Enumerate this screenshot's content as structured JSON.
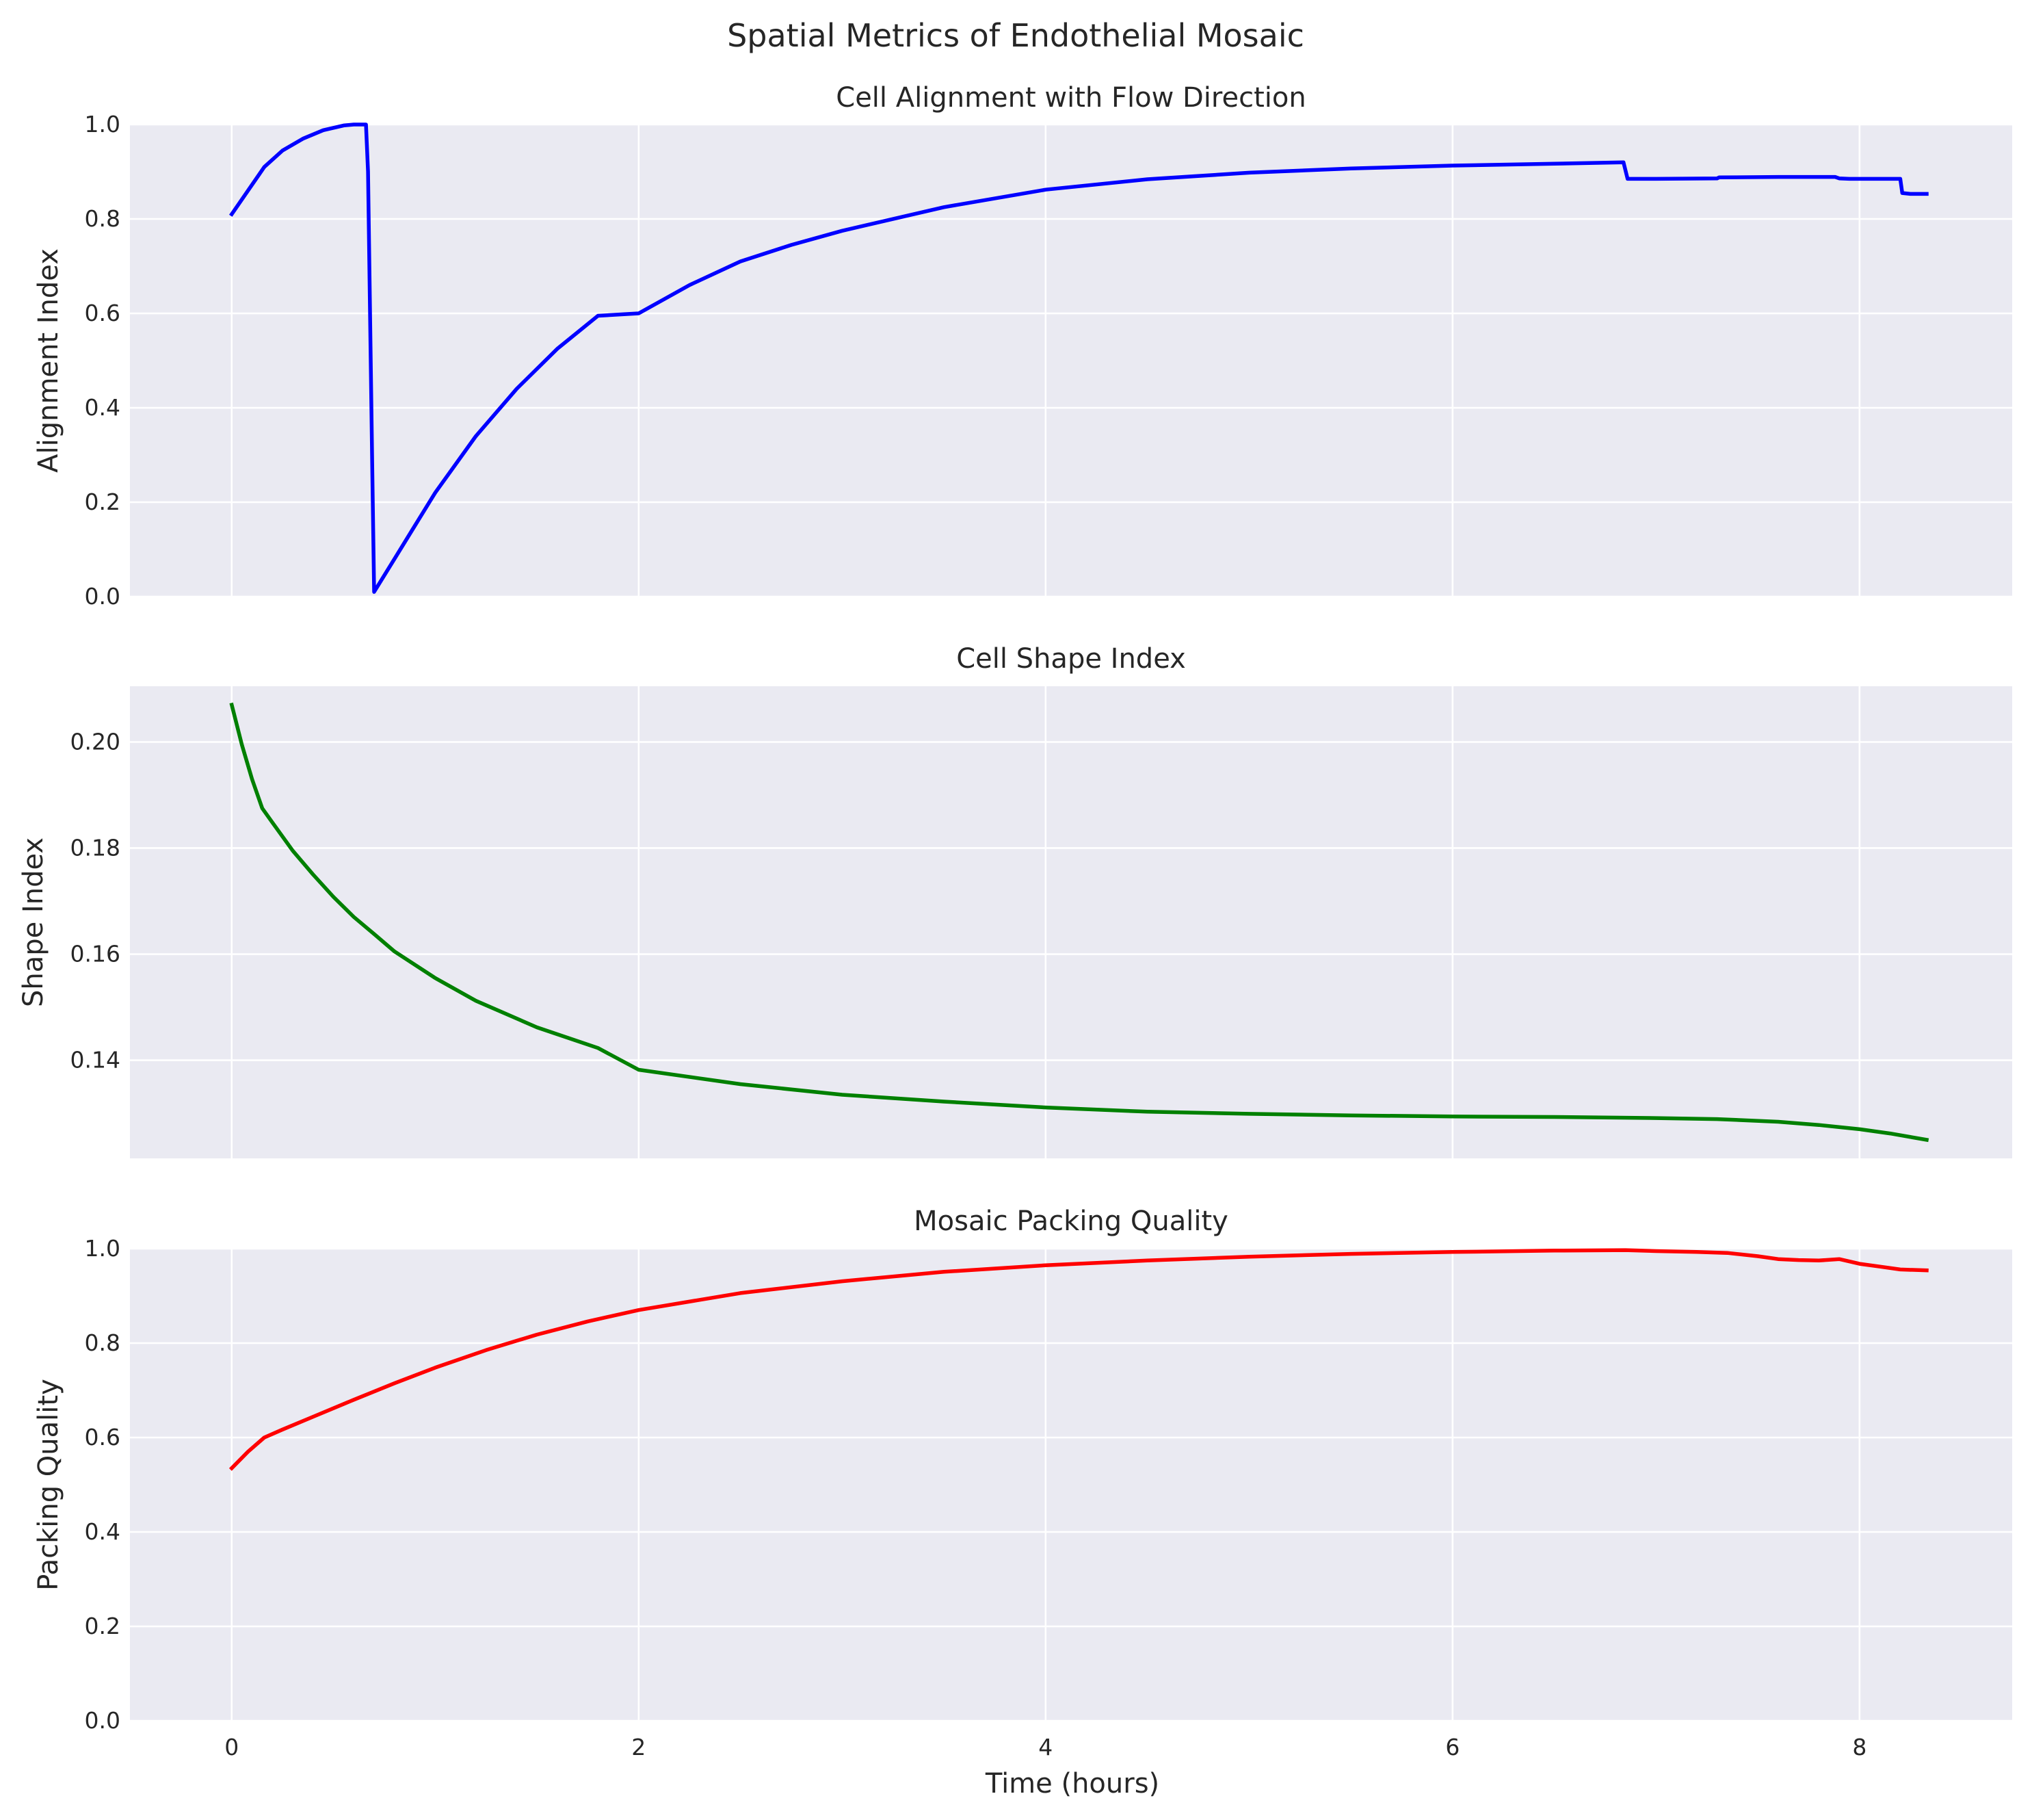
{
  "figure": {
    "suptitle": "Spatial Metrics of Endothelial Mosaic",
    "xlabel": "Time (hours)",
    "background": "#ffffff",
    "plot_background": "#eaeaf2",
    "grid_color": "#ffffff"
  },
  "chart_data": [
    {
      "type": "line",
      "title": "Cell Alignment with Flow Direction",
      "xlabel": "",
      "ylabel": "Alignment Index",
      "xlim": [
        -0.5,
        8.75
      ],
      "ylim": [
        0.0,
        1.0
      ],
      "xticks": [
        0,
        2,
        4,
        6,
        8
      ],
      "yticks": [
        0.0,
        0.2,
        0.4,
        0.6,
        0.8,
        1.0
      ],
      "ytick_labels": [
        "0.0",
        "0.2",
        "0.4",
        "0.6",
        "0.8",
        "1.0"
      ],
      "show_x_tick_labels": false,
      "grid": true,
      "series": [
        {
          "color": "#0000ff",
          "x": [
            0,
            0.08,
            0.16,
            0.25,
            0.35,
            0.45,
            0.55,
            0.6,
            0.64,
            0.66,
            0.67,
            0.69,
            0.7,
            0.8,
            0.9,
            1.0,
            1.2,
            1.4,
            1.6,
            1.8,
            2.0,
            2.25,
            2.5,
            2.75,
            3.0,
            3.5,
            4.0,
            4.5,
            5.0,
            5.5,
            6.0,
            6.5,
            6.84,
            6.86,
            7.0,
            7.3,
            7.31,
            7.6,
            7.88,
            7.9,
            7.95,
            8.0,
            8.2,
            8.21,
            8.25,
            8.33
          ],
          "y": [
            0.81,
            0.86,
            0.91,
            0.945,
            0.97,
            0.988,
            0.998,
            1.0,
            1.0,
            1.0,
            0.9,
            0.3,
            0.01,
            0.08,
            0.15,
            0.22,
            0.34,
            0.44,
            0.525,
            0.595,
            0.6,
            0.66,
            0.71,
            0.745,
            0.775,
            0.825,
            0.862,
            0.884,
            0.898,
            0.907,
            0.913,
            0.917,
            0.92,
            0.885,
            0.885,
            0.886,
            0.888,
            0.889,
            0.889,
            0.886,
            0.885,
            0.885,
            0.885,
            0.855,
            0.853,
            0.853
          ]
        }
      ]
    },
    {
      "type": "line",
      "title": "Cell Shape Index",
      "xlabel": "",
      "ylabel": "Shape Index",
      "xlim": [
        -0.5,
        8.75
      ],
      "ylim": [
        0.1215,
        0.2105
      ],
      "xticks": [
        0,
        2,
        4,
        6,
        8
      ],
      "yticks": [
        0.14,
        0.16,
        0.18,
        0.2
      ],
      "ytick_labels": [
        "0.14",
        "0.16",
        "0.18",
        "0.20"
      ],
      "show_x_tick_labels": false,
      "grid": true,
      "series": [
        {
          "color": "#008000",
          "x": [
            0,
            0.05,
            0.1,
            0.15,
            0.2,
            0.3,
            0.4,
            0.5,
            0.6,
            0.7,
            0.8,
            1.0,
            1.2,
            1.5,
            1.8,
            2.0,
            2.5,
            3.0,
            3.5,
            4.0,
            4.5,
            5.0,
            5.5,
            6.0,
            6.5,
            7.0,
            7.3,
            7.6,
            7.8,
            8.0,
            8.15,
            8.33
          ],
          "y": [
            0.207,
            0.1995,
            0.193,
            0.1875,
            0.1848,
            0.1795,
            0.175,
            0.1708,
            0.167,
            0.1638,
            0.1605,
            0.1555,
            0.1512,
            0.1462,
            0.1423,
            0.1382,
            0.1355,
            0.1335,
            0.1322,
            0.1311,
            0.1303,
            0.1299,
            0.1296,
            0.1294,
            0.1293,
            0.1291,
            0.1289,
            0.1284,
            0.1278,
            0.127,
            0.1262,
            0.125
          ]
        }
      ]
    },
    {
      "type": "line",
      "title": "Mosaic Packing Quality",
      "xlabel": "Time (hours)",
      "ylabel": "Packing Quality",
      "xlim": [
        -0.5,
        8.75
      ],
      "ylim": [
        0.0,
        1.0
      ],
      "xticks": [
        0,
        2,
        4,
        6,
        8
      ],
      "xtick_labels": [
        "0",
        "2",
        "4",
        "6",
        "8"
      ],
      "yticks": [
        0.0,
        0.2,
        0.4,
        0.6,
        0.8,
        1.0
      ],
      "ytick_labels": [
        "0.0",
        "0.2",
        "0.4",
        "0.6",
        "0.8",
        "1.0"
      ],
      "show_x_tick_labels": true,
      "grid": true,
      "series": [
        {
          "color": "#ff0000",
          "x": [
            0,
            0.08,
            0.16,
            0.25,
            0.4,
            0.6,
            0.8,
            1.0,
            1.25,
            1.5,
            1.75,
            2.0,
            2.5,
            3.0,
            3.5,
            4.0,
            4.5,
            5.0,
            5.5,
            6.0,
            6.5,
            6.85,
            7.0,
            7.2,
            7.35,
            7.5,
            7.6,
            7.7,
            7.8,
            7.9,
            8.0,
            8.1,
            8.2,
            8.33
          ],
          "y": [
            0.535,
            0.57,
            0.6,
            0.617,
            0.644,
            0.68,
            0.715,
            0.748,
            0.785,
            0.818,
            0.846,
            0.87,
            0.906,
            0.931,
            0.951,
            0.965,
            0.975,
            0.983,
            0.989,
            0.993,
            0.996,
            0.997,
            0.995,
            0.993,
            0.991,
            0.984,
            0.978,
            0.976,
            0.975,
            0.978,
            0.968,
            0.962,
            0.956,
            0.954
          ]
        }
      ]
    }
  ]
}
